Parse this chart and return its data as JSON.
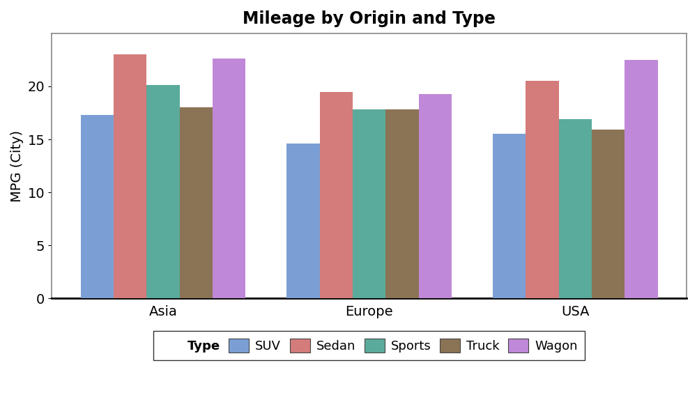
{
  "title": "Mileage by Origin and Type",
  "ylabel": "MPG (City)",
  "categories": [
    "Asia",
    "Europe",
    "USA"
  ],
  "types": [
    "SUV",
    "Sedan",
    "Sports",
    "Truck",
    "Wagon"
  ],
  "values": {
    "SUV": [
      17.3,
      14.6,
      15.5
    ],
    "Sedan": [
      23.0,
      19.5,
      20.5
    ],
    "Sports": [
      20.1,
      17.8,
      16.9
    ],
    "Truck": [
      18.0,
      17.8,
      15.9
    ],
    "Wagon": [
      22.6,
      19.3,
      22.5
    ]
  },
  "colors": {
    "SUV": "#7b9fd4",
    "Sedan": "#d47b7b",
    "Sports": "#5aab9b",
    "Truck": "#8b7355",
    "Wagon": "#c088d8"
  },
  "ylim": [
    0,
    25
  ],
  "yticks": [
    0,
    5,
    10,
    15,
    20
  ],
  "bar_width": 0.16,
  "figsize": [
    10.0,
    6.0
  ],
  "dpi": 100,
  "background_color": "#ffffff",
  "plot_background": "#ffffff",
  "legend_title": "Type",
  "spine_color": "#888888",
  "title_fontsize": 17,
  "axis_fontsize": 14,
  "tick_fontsize": 14,
  "legend_fontsize": 13
}
